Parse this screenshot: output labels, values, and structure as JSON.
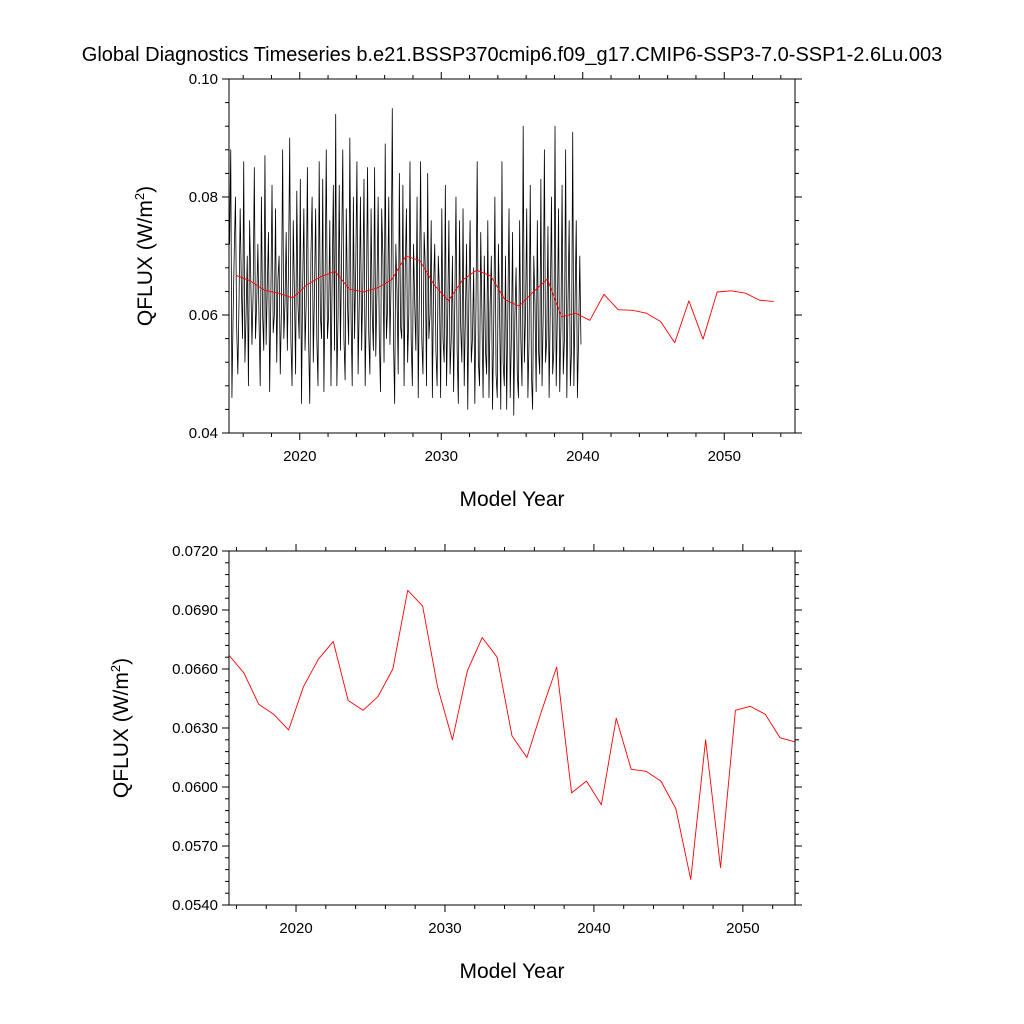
{
  "title": "Global Diagnostics Timeseries b.e21.BSSP370cmip6.f09_g17.CMIP6-SSP3-7.0-SSP1-2.6Lu.003",
  "chart_data": [
    {
      "type": "line",
      "xlabel": "Model Year",
      "ylabel": "QFLUX (W/m²)",
      "ylabel_parts": {
        "base": "QFLUX (W/m",
        "sup": "2",
        "close": ")"
      },
      "xlim": [
        2015,
        2055
      ],
      "ylim": [
        0.04,
        0.1
      ],
      "xticks": [
        2020,
        2030,
        2040,
        2050
      ],
      "yticks": [
        0.04,
        0.06,
        0.08,
        0.1
      ],
      "ytick_labels": [
        "0.04",
        "0.06",
        "0.08",
        "0.10"
      ],
      "series": [
        {
          "color": "#000000",
          "x_start": 2015.04,
          "x_step": 0.0833333,
          "values": [
            0.072,
            0.088,
            0.046,
            0.06,
            0.071,
            0.08,
            0.058,
            0.05,
            0.062,
            0.078,
            0.065,
            0.056,
            0.086,
            0.052,
            0.06,
            0.07,
            0.048,
            0.076,
            0.066,
            0.055,
            0.064,
            0.085,
            0.056,
            0.062,
            0.072,
            0.059,
            0.048,
            0.08,
            0.06,
            0.054,
            0.087,
            0.055,
            0.065,
            0.074,
            0.047,
            0.063,
            0.082,
            0.057,
            0.06,
            0.078,
            0.052,
            0.066,
            0.07,
            0.05,
            0.061,
            0.088,
            0.056,
            0.062,
            0.074,
            0.054,
            0.068,
            0.09,
            0.056,
            0.048,
            0.076,
            0.064,
            0.05,
            0.081,
            0.062,
            0.056,
            0.083,
            0.045,
            0.065,
            0.078,
            0.054,
            0.062,
            0.085,
            0.056,
            0.045,
            0.07,
            0.08,
            0.052,
            0.064,
            0.078,
            0.056,
            0.048,
            0.086,
            0.06,
            0.056,
            0.083,
            0.047,
            0.065,
            0.088,
            0.056,
            0.06,
            0.076,
            0.048,
            0.066,
            0.082,
            0.054,
            0.094,
            0.048,
            0.06,
            0.082,
            0.054,
            0.07,
            0.088,
            0.056,
            0.049,
            0.078,
            0.062,
            0.055,
            0.09,
            0.06,
            0.048,
            0.08,
            0.056,
            0.068,
            0.086,
            0.05,
            0.062,
            0.08,
            0.054,
            0.065,
            0.083,
            0.048,
            0.062,
            0.085,
            0.057,
            0.05,
            0.078,
            0.06,
            0.054,
            0.085,
            0.053,
            0.064,
            0.08,
            0.056,
            0.047,
            0.078,
            0.07,
            0.052,
            0.089,
            0.056,
            0.061,
            0.08,
            0.055,
            0.066,
            0.095,
            0.056,
            0.045,
            0.072,
            0.064,
            0.05,
            0.084,
            0.058,
            0.056,
            0.082,
            0.048,
            0.068,
            0.078,
            0.052,
            0.06,
            0.086,
            0.056,
            0.048,
            0.072,
            0.062,
            0.054,
            0.08,
            0.046,
            0.064,
            0.086,
            0.056,
            0.05,
            0.074,
            0.068,
            0.048,
            0.084,
            0.056,
            0.06,
            0.076,
            0.046,
            0.065,
            0.072,
            0.054,
            0.048,
            0.07,
            0.064,
            0.046,
            0.078,
            0.056,
            0.052,
            0.082,
            0.048,
            0.06,
            0.076,
            0.05,
            0.056,
            0.07,
            0.047,
            0.062,
            0.08,
            0.054,
            0.045,
            0.076,
            0.058,
            0.052,
            0.078,
            0.048,
            0.06,
            0.072,
            0.044,
            0.064,
            0.076,
            0.052,
            0.056,
            0.068,
            0.045,
            0.062,
            0.086,
            0.052,
            0.048,
            0.074,
            0.06,
            0.046,
            0.07,
            0.054,
            0.05,
            0.076,
            0.046,
            0.062,
            0.07,
            0.044,
            0.058,
            0.08,
            0.05,
            0.046,
            0.072,
            0.06,
            0.044,
            0.086,
            0.052,
            0.048,
            0.07,
            0.044,
            0.061,
            0.078,
            0.046,
            0.056,
            0.074,
            0.043,
            0.06,
            0.068,
            0.05,
            0.046,
            0.076,
            0.056,
            0.048,
            0.092,
            0.052,
            0.06,
            0.078,
            0.046,
            0.056,
            0.082,
            0.05,
            0.044,
            0.07,
            0.062,
            0.047,
            0.076,
            0.054,
            0.05,
            0.083,
            0.048,
            0.06,
            0.088,
            0.052,
            0.056,
            0.075,
            0.046,
            0.062,
            0.08,
            0.05,
            0.054,
            0.092,
            0.048,
            0.06,
            0.078,
            0.047,
            0.058,
            0.082,
            0.05,
            0.056,
            0.088,
            0.046,
            0.062,
            0.076,
            0.048,
            0.054,
            0.091,
            0.048,
            0.062,
            0.076,
            0.046,
            0.056,
            0.07,
            0.055
          ]
        },
        {
          "color": "#ff0000",
          "x": [
            2015.5,
            2016.5,
            2017.5,
            2018.5,
            2019.5,
            2020.5,
            2021.5,
            2022.5,
            2023.5,
            2024.5,
            2025.5,
            2026.5,
            2027.5,
            2028.5,
            2029.5,
            2030.5,
            2031.5,
            2032.5,
            2033.5,
            2034.5,
            2035.5,
            2036.5,
            2037.5,
            2038.5,
            2039.5,
            2040.5,
            2041.5,
            2042.5,
            2043.5,
            2044.5,
            2045.5,
            2046.5,
            2047.5,
            2048.5,
            2049.5,
            2050.5,
            2051.5,
            2052.5,
            2053.5
          ],
          "values": [
            0.0667,
            0.0658,
            0.0642,
            0.0637,
            0.0629,
            0.0651,
            0.0665,
            0.0674,
            0.0644,
            0.0639,
            0.0646,
            0.066,
            0.07,
            0.0692,
            0.0651,
            0.0624,
            0.0659,
            0.0676,
            0.0666,
            0.0626,
            0.0615,
            0.0639,
            0.0661,
            0.0597,
            0.0603,
            0.0591,
            0.0635,
            0.0609,
            0.0608,
            0.0603,
            0.0589,
            0.0553,
            0.0624,
            0.0559,
            0.0639,
            0.0641,
            0.0637,
            0.0625,
            0.0623
          ]
        }
      ]
    },
    {
      "type": "line",
      "xlabel": "Model Year",
      "ylabel": "QFLUX (W/m²)",
      "ylabel_parts": {
        "base": "QFLUX (W/m",
        "sup": "2",
        "close": ")"
      },
      "xlim": [
        2015.5,
        2053.5
      ],
      "ylim": [
        0.054,
        0.072
      ],
      "xticks": [
        2020,
        2030,
        2040,
        2050
      ],
      "yticks": [
        0.054,
        0.057,
        0.06,
        0.063,
        0.066,
        0.069,
        0.072
      ],
      "ytick_labels": [
        "0.0540",
        "0.0570",
        "0.0600",
        "0.0630",
        "0.0660",
        "0.0690",
        "0.0720"
      ],
      "series": [
        {
          "color": "#ff0000",
          "x": [
            2015.5,
            2016.5,
            2017.5,
            2018.5,
            2019.5,
            2020.5,
            2021.5,
            2022.5,
            2023.5,
            2024.5,
            2025.5,
            2026.5,
            2027.5,
            2028.5,
            2029.5,
            2030.5,
            2031.5,
            2032.5,
            2033.5,
            2034.5,
            2035.5,
            2036.5,
            2037.5,
            2038.5,
            2039.5,
            2040.5,
            2041.5,
            2042.5,
            2043.5,
            2044.5,
            2045.5,
            2046.5,
            2047.5,
            2048.5,
            2049.5,
            2050.5,
            2051.5,
            2052.5,
            2053.5
          ],
          "values": [
            0.0667,
            0.0658,
            0.0642,
            0.0637,
            0.0629,
            0.0651,
            0.0665,
            0.0674,
            0.0644,
            0.0639,
            0.0646,
            0.066,
            0.07,
            0.0692,
            0.0651,
            0.0624,
            0.0659,
            0.0676,
            0.0666,
            0.0626,
            0.0615,
            0.0639,
            0.0661,
            0.0597,
            0.0603,
            0.0591,
            0.0635,
            0.0609,
            0.0608,
            0.0603,
            0.0589,
            0.0553,
            0.0624,
            0.0559,
            0.0639,
            0.0641,
            0.0637,
            0.0625,
            0.0623
          ]
        }
      ]
    }
  ]
}
